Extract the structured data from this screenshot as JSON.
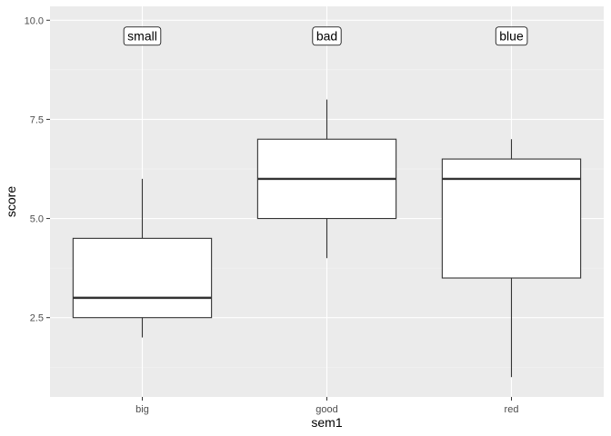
{
  "chart_data": {
    "type": "boxplot",
    "xlabel": "sem1",
    "ylabel": "score",
    "ylim": [
      0.5,
      10.35
    ],
    "y_ticks": [
      2.5,
      5.0,
      7.5,
      10.0
    ],
    "y_tick_labels": [
      "2.5",
      "5.0",
      "7.5",
      "10.0"
    ],
    "categories": [
      "big",
      "good",
      "red"
    ],
    "boxes": [
      {
        "category": "big",
        "whisker_low": 2,
        "q1": 2.5,
        "median": 3,
        "q3": 4.5,
        "whisker_high": 6
      },
      {
        "category": "good",
        "whisker_low": 4,
        "q1": 5,
        "median": 6,
        "q3": 7,
        "whisker_high": 8
      },
      {
        "category": "red",
        "whisker_low": 1,
        "q1": 3.5,
        "median": 6,
        "q3": 6.5,
        "whisker_high": 7
      }
    ],
    "annotations": [
      {
        "category": "big",
        "y": 9.6,
        "text": "small"
      },
      {
        "category": "good",
        "y": 9.6,
        "text": "bad"
      },
      {
        "category": "red",
        "y": 9.6,
        "text": "blue"
      }
    ],
    "grid": true,
    "colors": {
      "panel_background": "#ebebeb",
      "grid_major": "#ffffff",
      "grid_minor": "#f5f5f5",
      "box_fill": "#ffffff",
      "box_stroke": "#333333"
    }
  }
}
